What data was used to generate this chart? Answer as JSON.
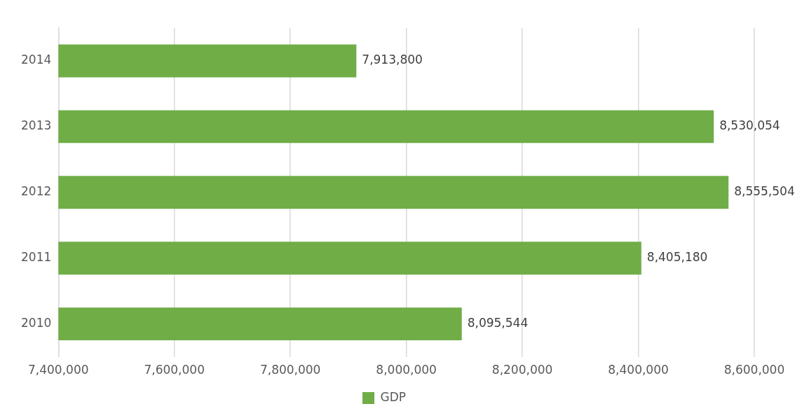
{
  "chart_data": {
    "type": "bar",
    "orientation": "horizontal",
    "categories": [
      "2014",
      "2013",
      "2012",
      "2011",
      "2010"
    ],
    "series": [
      {
        "name": "GDP",
        "color": "#70ad47",
        "values": [
          7913800,
          8530054,
          8555504,
          8405180,
          8095544
        ],
        "value_labels": [
          "7,913,800",
          "8,530,054",
          "8,555,504",
          "8,405,180",
          "8,095,544"
        ]
      }
    ],
    "xlim": [
      7400000,
      8600000
    ],
    "xticks": [
      {
        "value": 7400000,
        "label": "7,400,000"
      },
      {
        "value": 7600000,
        "label": "7,600,000"
      },
      {
        "value": 7800000,
        "label": "7,800,000"
      },
      {
        "value": 8000000,
        "label": "8,000,000"
      },
      {
        "value": 8200000,
        "label": "8,200,000"
      },
      {
        "value": 8400000,
        "label": "8,400,000"
      },
      {
        "value": 8600000,
        "label": "8,600,000"
      }
    ],
    "grid": "x",
    "legend": "bottom"
  }
}
